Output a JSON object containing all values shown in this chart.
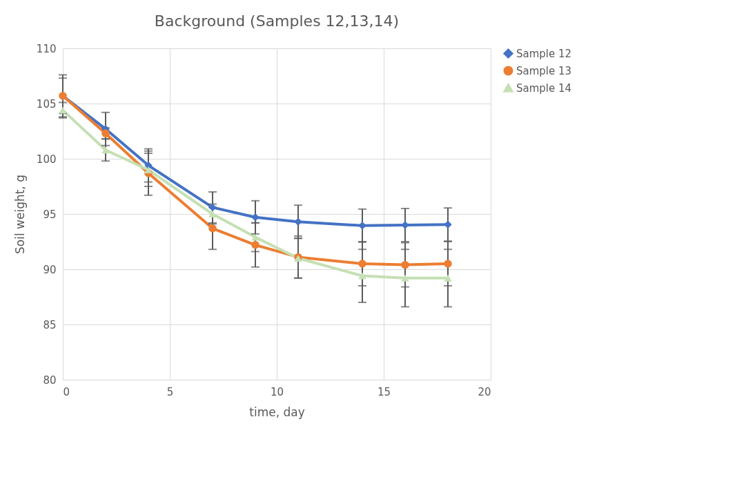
{
  "chart_data": {
    "type": "line",
    "title": "Background (Samples 12,13,14)",
    "xlabel": "time, day",
    "ylabel": "Soil weight, g",
    "x": [
      0,
      2,
      4,
      7,
      9,
      11,
      14,
      16,
      18
    ],
    "series": [
      {
        "name": "Sample 12",
        "color": "#4472c4",
        "marker": "diamond",
        "values": [
          105.7,
          102.7,
          99.4,
          95.6,
          94.7,
          94.3,
          93.95,
          94.0,
          94.05
        ],
        "errors": [
          1.9,
          1.5,
          1.5,
          1.4,
          1.5,
          1.5,
          1.5,
          1.5,
          1.5
        ]
      },
      {
        "name": "Sample 13",
        "color": "#ed7d31",
        "marker": "circle",
        "values": [
          105.7,
          102.3,
          98.7,
          93.7,
          92.2,
          91.1,
          90.5,
          90.4,
          90.5
        ],
        "errors": [
          1.6,
          0.5,
          2.0,
          1.9,
          2.0,
          1.9,
          2.0,
          2.0,
          2.0
        ]
      },
      {
        "name": "Sample 14",
        "color": "#c5e0b4",
        "marker": "triangle",
        "values": [
          104.4,
          100.8,
          99.0,
          95.0,
          92.9,
          91.0,
          89.4,
          89.2,
          89.2
        ],
        "errors": [
          0.7,
          1.0,
          1.5,
          0.9,
          1.3,
          1.8,
          2.4,
          2.6,
          2.6
        ]
      }
    ],
    "xlim": [
      0,
      20
    ],
    "xticks": [
      0,
      5,
      10,
      15,
      20
    ],
    "ylim": [
      80,
      110
    ],
    "yticks": [
      80,
      85,
      90,
      95,
      100,
      105,
      110
    ],
    "grid": true,
    "legend": "right",
    "line_style": "solid"
  }
}
